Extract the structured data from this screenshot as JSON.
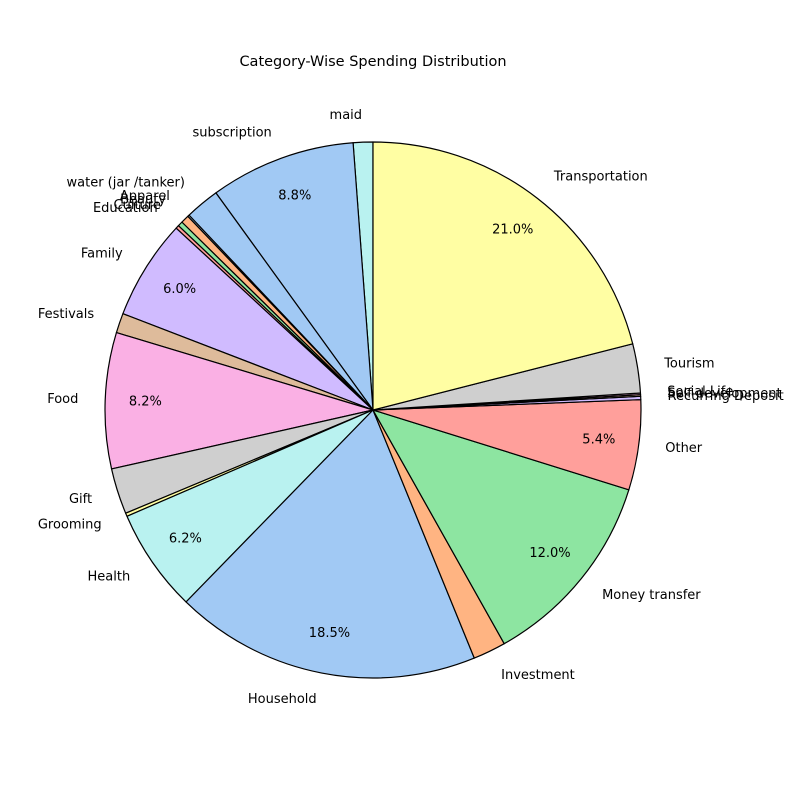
{
  "chart_data": {
    "type": "pie",
    "title": "Category-Wise Spending Distribution",
    "start_angle_deg": 90,
    "direction": "counterclockwise",
    "percent_label_min": 5,
    "slices": [
      {
        "label": "maid",
        "value": 1.2,
        "color": "#b9f2f0"
      },
      {
        "label": "subscription",
        "value": 8.9,
        "color": "#a1c9f4"
      },
      {
        "label": "water (jar /tanker)",
        "value": 2.1,
        "color": "#a1c9f4"
      },
      {
        "label": "Apparel",
        "value": 0.1,
        "color": "#a1c9f4"
      },
      {
        "label": "Beauty",
        "value": 0.5,
        "color": "#ffb482"
      },
      {
        "label": "Culture",
        "value": 0.3,
        "color": "#8de5a1"
      },
      {
        "label": "Education",
        "value": 0.2,
        "color": "#ff9f9b"
      },
      {
        "label": "Family",
        "value": 6.1,
        "color": "#d0bbff"
      },
      {
        "label": "Festivals",
        "value": 1.2,
        "color": "#debb9b"
      },
      {
        "label": "Food",
        "value": 8.3,
        "color": "#fab0e4"
      },
      {
        "label": "Gift",
        "value": 2.8,
        "color": "#cfcfcf"
      },
      {
        "label": "Grooming",
        "value": 0.2,
        "color": "#fffea3"
      },
      {
        "label": "Health",
        "value": 6.3,
        "color": "#b9f2f0"
      },
      {
        "label": "Household",
        "value": 18.7,
        "color": "#a1c9f4"
      },
      {
        "label": "Investment",
        "value": 2.0,
        "color": "#ffb482"
      },
      {
        "label": "Money transfer",
        "value": 12.2,
        "color": "#8de5a1"
      },
      {
        "label": "Other",
        "value": 5.5,
        "color": "#ff9f9b"
      },
      {
        "label": "Recurring Deposit",
        "value": 0.2,
        "color": "#d0bbff"
      },
      {
        "label": "Self-development",
        "value": 0.1,
        "color": "#debb9b"
      },
      {
        "label": "Social Life",
        "value": 0.1,
        "color": "#fab0e4"
      },
      {
        "label": "Tourism",
        "value": 3.0,
        "color": "#cfcfcf"
      },
      {
        "label": "Transportation",
        "value": 21.3,
        "color": "#fffea3"
      }
    ]
  }
}
